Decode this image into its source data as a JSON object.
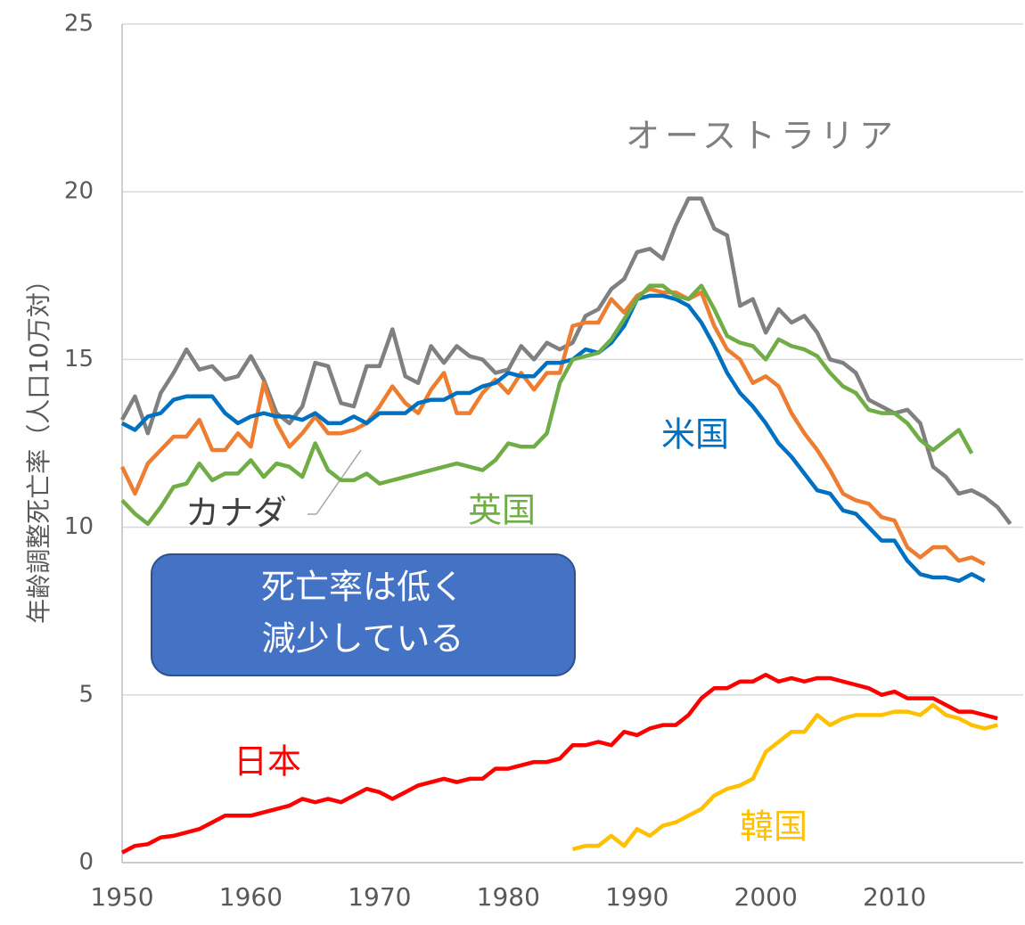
{
  "chart_data": {
    "type": "line",
    "ylabel": "年齢調整死亡率（人口10万対）",
    "x": [
      1950,
      1951,
      1952,
      1953,
      1954,
      1955,
      1956,
      1957,
      1958,
      1959,
      1960,
      1961,
      1962,
      1963,
      1964,
      1965,
      1966,
      1967,
      1968,
      1969,
      1970,
      1971,
      1972,
      1973,
      1974,
      1975,
      1976,
      1977,
      1978,
      1979,
      1980,
      1981,
      1982,
      1983,
      1984,
      1985,
      1986,
      1987,
      1988,
      1989,
      1990,
      1991,
      1992,
      1993,
      1994,
      1995,
      1996,
      1997,
      1998,
      1999,
      2000,
      2001,
      2002,
      2003,
      2004,
      2005,
      2006,
      2007,
      2008,
      2009,
      2010,
      2011,
      2012,
      2013,
      2014,
      2015,
      2016,
      2017,
      2018,
      2019
    ],
    "series": [
      {
        "name": "オーストラリア",
        "color": "#808080",
        "values": [
          13.2,
          13.9,
          12.8,
          14.0,
          14.6,
          15.3,
          14.7,
          14.8,
          14.4,
          14.5,
          15.1,
          14.4,
          13.4,
          13.1,
          13.6,
          14.9,
          14.8,
          13.7,
          13.6,
          14.8,
          14.8,
          15.9,
          14.5,
          14.3,
          15.4,
          14.9,
          15.4,
          15.1,
          15.0,
          14.6,
          14.7,
          15.4,
          15.0,
          15.5,
          15.3,
          15.5,
          16.3,
          16.5,
          17.1,
          17.4,
          18.2,
          18.3,
          18.0,
          19.0,
          19.8,
          19.8,
          18.9,
          18.7,
          16.6,
          16.8,
          15.8,
          16.5,
          16.1,
          16.3,
          15.8,
          15.0,
          14.9,
          14.6,
          13.8,
          13.6,
          13.4,
          13.5,
          13.1,
          11.8,
          11.5,
          11.0,
          11.1,
          10.9,
          10.6,
          10.1
        ]
      },
      {
        "name": "カナダ",
        "color": "#ed7d31",
        "values": [
          11.8,
          11.0,
          11.9,
          12.3,
          12.7,
          12.7,
          13.2,
          12.3,
          12.3,
          12.8,
          12.4,
          14.3,
          13.1,
          12.4,
          12.8,
          13.3,
          12.8,
          12.8,
          12.9,
          13.1,
          13.6,
          14.2,
          13.7,
          13.4,
          14.1,
          14.6,
          13.4,
          13.4,
          14.0,
          14.4,
          14.0,
          14.6,
          14.1,
          14.6,
          14.6,
          16.0,
          16.1,
          16.1,
          16.8,
          16.4,
          16.9,
          17.1,
          17.0,
          17.0,
          16.8,
          17.0,
          16.0,
          15.3,
          15.0,
          14.3,
          14.5,
          14.2,
          13.4,
          12.8,
          12.3,
          11.7,
          11.0,
          10.8,
          10.7,
          10.3,
          10.2,
          9.4,
          9.1,
          9.4,
          9.4,
          9.0,
          9.1,
          8.9,
          null,
          null
        ]
      },
      {
        "name": "米国",
        "color": "#0070c0",
        "values": [
          13.1,
          12.9,
          13.3,
          13.4,
          13.8,
          13.9,
          13.9,
          13.9,
          13.4,
          13.1,
          13.3,
          13.4,
          13.3,
          13.3,
          13.2,
          13.4,
          13.1,
          13.1,
          13.3,
          13.1,
          13.4,
          13.4,
          13.4,
          13.7,
          13.8,
          13.8,
          14.0,
          14.0,
          14.2,
          14.3,
          14.6,
          14.5,
          14.5,
          14.9,
          14.9,
          15.0,
          15.3,
          15.2,
          15.5,
          16.0,
          16.8,
          16.9,
          16.9,
          16.8,
          16.6,
          16.1,
          15.4,
          14.6,
          14.0,
          13.6,
          13.1,
          12.5,
          12.1,
          11.6,
          11.1,
          11.0,
          10.5,
          10.4,
          10.0,
          9.6,
          9.6,
          9.0,
          8.6,
          8.5,
          8.5,
          8.4,
          8.6,
          8.4,
          null,
          null
        ]
      },
      {
        "name": "英国",
        "color": "#70ad47",
        "values": [
          10.8,
          10.4,
          10.1,
          10.6,
          11.2,
          11.3,
          11.9,
          11.4,
          11.6,
          11.6,
          12.0,
          11.5,
          11.9,
          11.8,
          11.5,
          12.5,
          11.7,
          11.4,
          11.4,
          11.6,
          11.3,
          11.4,
          11.5,
          11.6,
          11.7,
          11.8,
          11.9,
          11.8,
          11.7,
          12.0,
          12.5,
          12.4,
          12.4,
          12.8,
          14.3,
          15.0,
          15.1,
          15.2,
          15.6,
          16.2,
          16.8,
          17.2,
          17.2,
          16.9,
          16.8,
          17.2,
          16.5,
          15.7,
          15.5,
          15.4,
          15.0,
          15.6,
          15.4,
          15.3,
          15.1,
          14.6,
          14.2,
          14.0,
          13.5,
          13.4,
          13.4,
          13.1,
          12.6,
          12.3,
          12.6,
          12.9,
          12.2,
          null,
          null,
          null
        ]
      },
      {
        "name": "日本",
        "color": "#ff0000",
        "values": [
          0.3,
          0.5,
          0.55,
          0.75,
          0.8,
          0.9,
          1.0,
          1.2,
          1.4,
          1.4,
          1.4,
          1.5,
          1.6,
          1.7,
          1.9,
          1.8,
          1.9,
          1.8,
          2.0,
          2.2,
          2.1,
          1.9,
          2.1,
          2.3,
          2.4,
          2.5,
          2.4,
          2.5,
          2.5,
          2.8,
          2.8,
          2.9,
          3.0,
          3.0,
          3.1,
          3.5,
          3.5,
          3.6,
          3.5,
          3.9,
          3.8,
          4.0,
          4.1,
          4.1,
          4.4,
          4.9,
          5.2,
          5.2,
          5.4,
          5.4,
          5.6,
          5.4,
          5.5,
          5.4,
          5.5,
          5.5,
          5.4,
          5.3,
          5.2,
          5.0,
          5.1,
          4.9,
          4.9,
          4.9,
          4.7,
          4.5,
          4.5,
          4.4,
          4.3,
          null
        ]
      },
      {
        "name": "韓国",
        "color": "#ffc000",
        "values": [
          null,
          null,
          null,
          null,
          null,
          null,
          null,
          null,
          null,
          null,
          null,
          null,
          null,
          null,
          null,
          null,
          null,
          null,
          null,
          null,
          null,
          null,
          null,
          null,
          null,
          null,
          null,
          null,
          null,
          null,
          null,
          null,
          null,
          null,
          null,
          0.4,
          0.5,
          0.5,
          0.8,
          0.5,
          1.0,
          0.8,
          1.1,
          1.2,
          1.4,
          1.6,
          2.0,
          2.2,
          2.3,
          2.5,
          3.3,
          3.6,
          3.9,
          3.9,
          4.4,
          4.1,
          4.3,
          4.4,
          4.4,
          4.4,
          4.5,
          4.5,
          4.4,
          4.7,
          4.4,
          4.3,
          4.1,
          4.0,
          4.1,
          null
        ]
      }
    ],
    "annotation": [
      "死亡率は低く",
      "減少している"
    ],
    "xlim": [
      1950,
      2020
    ],
    "xticks": [
      1950,
      1960,
      1970,
      1980,
      1990,
      2000,
      2010
    ],
    "ylim": [
      0,
      25
    ],
    "yticks": [
      0,
      5,
      10,
      15,
      20,
      25
    ],
    "grid": true
  }
}
